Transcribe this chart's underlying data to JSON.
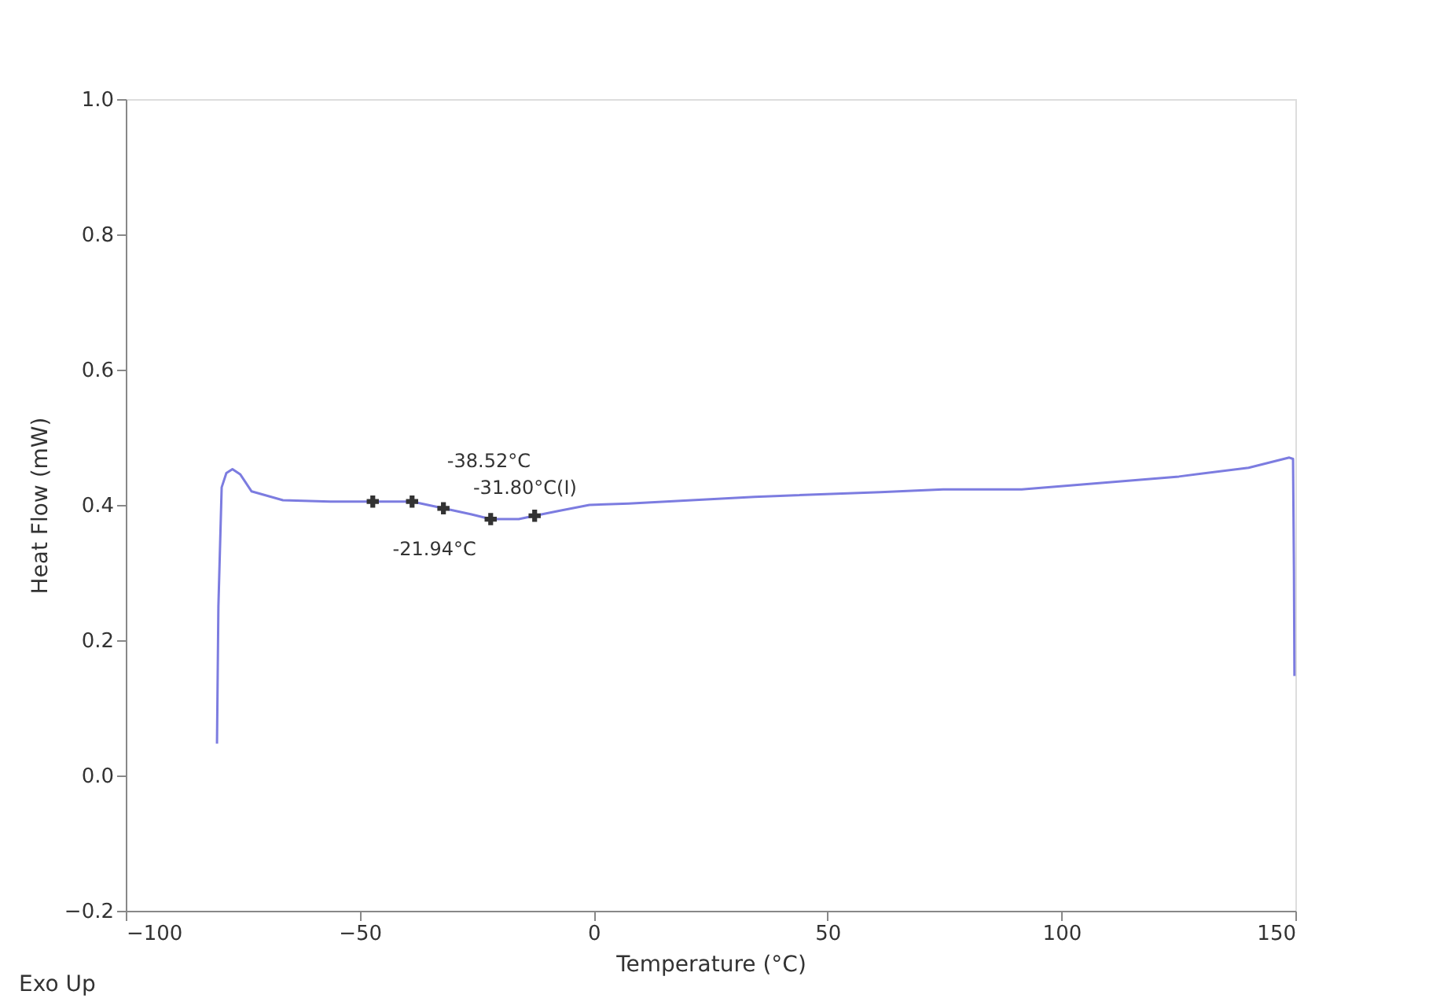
{
  "chart_data": {
    "type": "line",
    "xlabel": "Temperature (°C)",
    "ylabel": "Heat Flow (mW)",
    "xlim": [
      -100,
      150
    ],
    "xticks": [
      -100,
      -50,
      0,
      50,
      100,
      150
    ],
    "ylim": [
      -0.2,
      1.0
    ],
    "yticks": [
      -0.2,
      {
        "value": 0,
        "label": "0.0"
      },
      0.2,
      0.4,
      0.6,
      0.8,
      {
        "value": 1.0,
        "label": "1.0"
      }
    ],
    "grid": false,
    "legend": false,
    "series": [
      {
        "color": "#7c7ce0",
        "line_style": "solid",
        "x": [
          -80.5,
          -80.2,
          -79.5,
          -78.5,
          -77.2,
          -75.5,
          -73.1,
          -66.4,
          -56.3,
          -47.2,
          -38.8,
          -32.1,
          -26.1,
          -22,
          -16,
          -12.6,
          -7.6,
          -0.9,
          7.5,
          34.4,
          61.3,
          74.7,
          91.5,
          125.1,
          140,
          148.7,
          149.5,
          149.7,
          149.8
        ],
        "values": [
          0.047,
          0.25,
          0.426,
          0.447,
          0.453,
          0.445,
          0.42,
          0.407,
          0.405,
          0.405,
          0.405,
          0.395,
          0.386,
          0.379,
          0.379,
          0.384,
          0.391,
          0.4,
          0.402,
          0.412,
          0.419,
          0.423,
          0.423,
          0.442,
          0.455,
          0.47,
          0.468,
          0.3,
          0.147
        ]
      },
      {
        "type": "scatter",
        "color": "#333333",
        "marker": "cross",
        "x": [
          -47.2,
          -38.8,
          -32.1,
          -22,
          -12.6
        ],
        "values": [
          0.405,
          0.405,
          0.395,
          0.379,
          0.384
        ]
      }
    ],
    "annotations": [
      {
        "text": "-38.52°C",
        "x": -38.52,
        "y": 0.405
      },
      {
        "text": "-31.80°C(I)",
        "x": -31.8,
        "y": 0.395
      },
      {
        "text": "-21.94°C",
        "x": -21.94,
        "y": 0.379
      },
      "Exo Up"
    ]
  }
}
